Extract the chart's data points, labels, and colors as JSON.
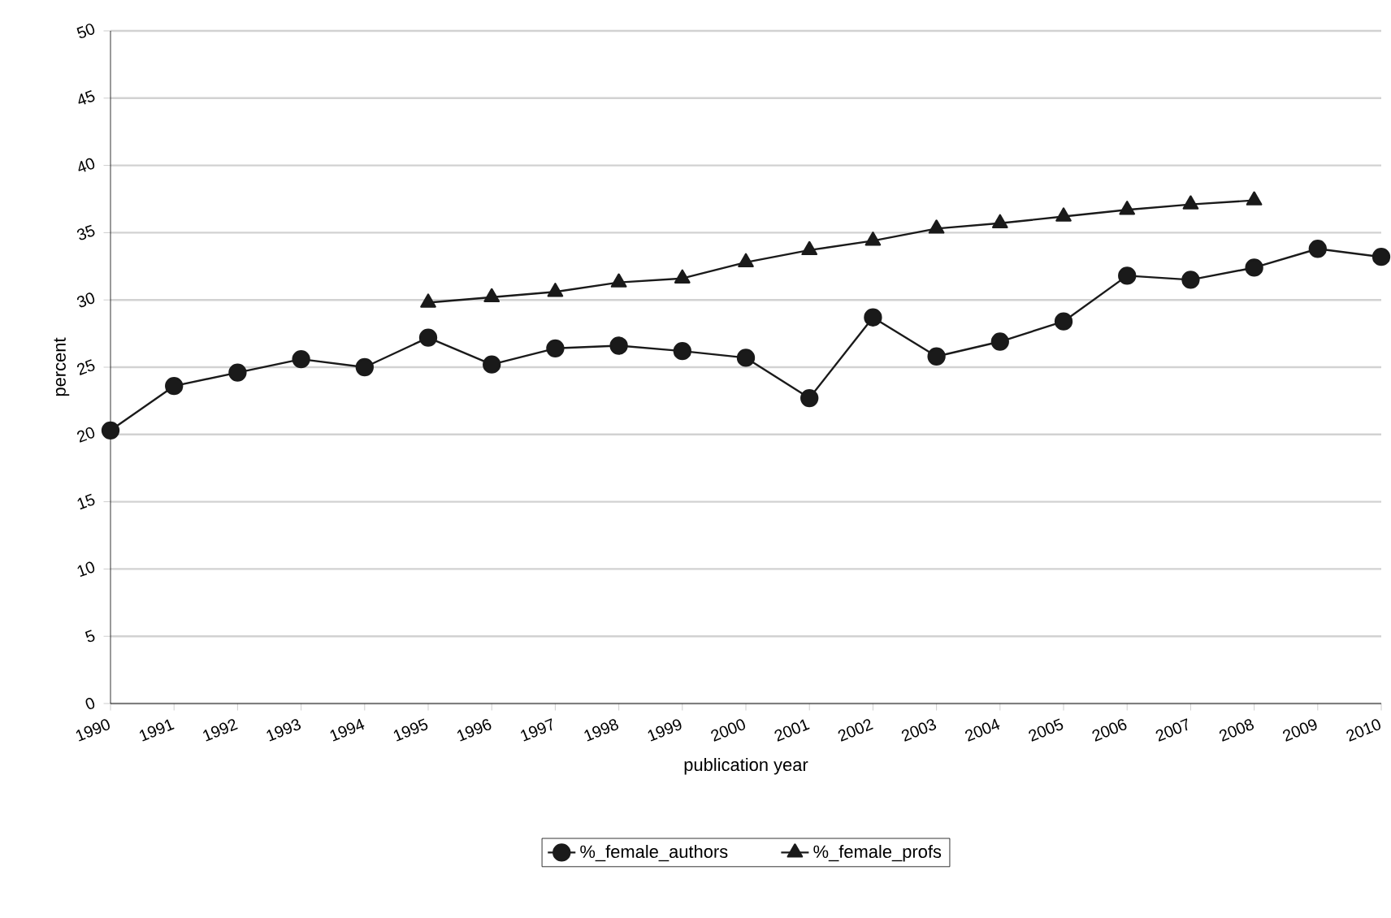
{
  "chart_data": {
    "type": "line",
    "xlabel": "publication year",
    "ylabel": "percent",
    "x": [
      1990,
      1991,
      1992,
      1993,
      1994,
      1995,
      1996,
      1997,
      1998,
      1999,
      2000,
      2001,
      2002,
      2003,
      2004,
      2005,
      2006,
      2007,
      2008,
      2009,
      2010
    ],
    "series": [
      {
        "name": "%_female_authors",
        "color": "#1a1a1a",
        "marker": "circle",
        "values": [
          20.3,
          23.6,
          24.6,
          25.6,
          25.0,
          27.2,
          25.2,
          26.4,
          26.6,
          26.2,
          25.7,
          22.7,
          28.7,
          25.8,
          26.9,
          28.4,
          31.8,
          31.5,
          32.4,
          33.8,
          33.2
        ]
      },
      {
        "name": "%_female_profs",
        "color": "#1a1a1a",
        "marker": "triangle",
        "x": [
          1995,
          1996,
          1997,
          1998,
          1999,
          2000,
          2001,
          2002,
          2003,
          2004,
          2005,
          2006,
          2007,
          2008
        ],
        "values": [
          29.8,
          30.2,
          30.6,
          31.3,
          31.6,
          32.8,
          33.7,
          34.4,
          35.3,
          35.7,
          36.2,
          36.7,
          37.1,
          37.4
        ]
      }
    ],
    "xlim": [
      1990,
      2010
    ],
    "xticks": [
      1990,
      1991,
      1992,
      1993,
      1994,
      1995,
      1996,
      1997,
      1998,
      1999,
      2000,
      2001,
      2002,
      2003,
      2004,
      2005,
      2006,
      2007,
      2008,
      2009,
      2010
    ],
    "ylim": [
      0,
      50
    ],
    "yticks": [
      0,
      5,
      10,
      15,
      20,
      25,
      30,
      35,
      40,
      45,
      50
    ],
    "grid": "y",
    "legend": "bottom",
    "line_style": "solid"
  }
}
